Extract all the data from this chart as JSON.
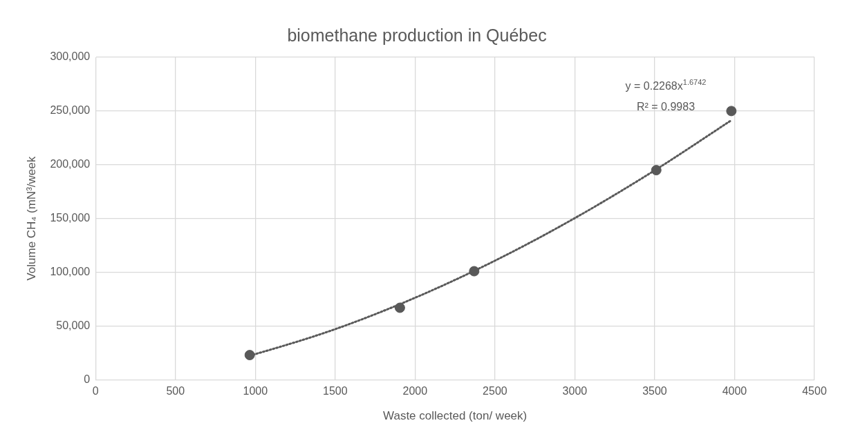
{
  "chart_data": {
    "type": "scatter",
    "title": "biomethane production in Québec",
    "xlabel": "Waste collected (ton/ week)",
    "ylabel": "Volume CH₄ (mN³/week",
    "series": [
      {
        "type": "scatter",
        "color": "#595959",
        "x": [
          965,
          1905,
          2370,
          3510,
          3980
        ],
        "values": [
          23000,
          67000,
          101000,
          195000,
          250000
        ],
        "marker": "circle"
      },
      {
        "type": "line",
        "color": "#595959",
        "line_style": "dotted",
        "marker": "none",
        "x": [
          965,
          1000,
          1500,
          2000,
          2500,
          3000,
          3500,
          3980
        ],
        "values": [
          22500,
          23900,
          47100,
          76300,
          110800,
          150400,
          194800,
          241400
        ]
      }
    ],
    "xlim": [
      0,
      4500
    ],
    "xticks": [
      0,
      500,
      1000,
      1500,
      2000,
      2500,
      3000,
      3500,
      4000,
      4500
    ],
    "ylim": [
      0,
      300000
    ],
    "yticks": [
      0,
      {
        "value": 50000,
        "label": "50,000"
      },
      {
        "value": 100000,
        "label": "100,000"
      },
      {
        "value": 150000,
        "label": "150,000"
      },
      {
        "value": 200000,
        "label": "200,000"
      },
      {
        "value": 250000,
        "label": "250,000"
      },
      {
        "value": 300000,
        "label": "300,000"
      }
    ],
    "grid": true,
    "legend": false,
    "annotations": [
      "y = 0.2268x$^{1.6742}$",
      "R² = 0.9983"
    ]
  }
}
